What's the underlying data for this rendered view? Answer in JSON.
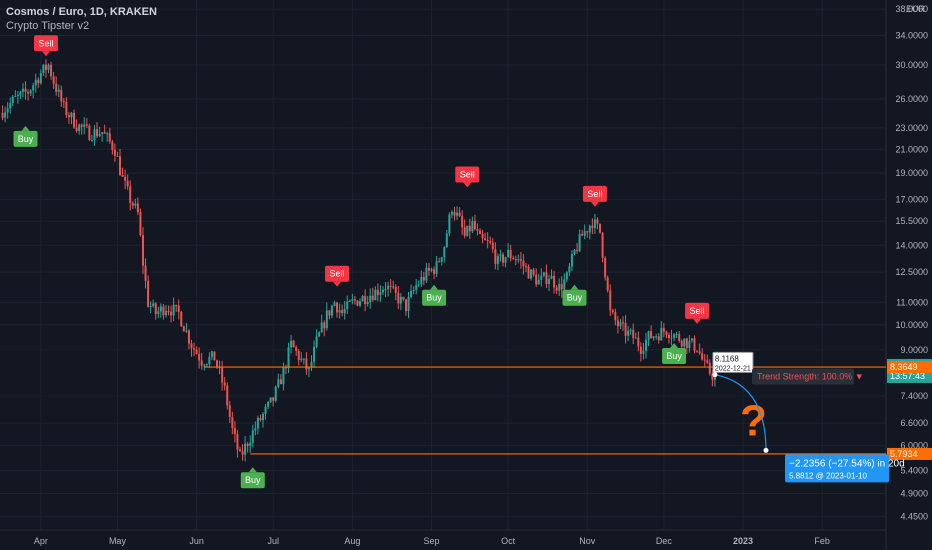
{
  "header": {
    "title": "Cosmos / Euro, 1D, KRAKEN",
    "indicator": "Crypto Tipster v2"
  },
  "colors": {
    "background": "#131722",
    "up": "#26a69a",
    "down": "#ef5350",
    "grid": "#1e2230",
    "axis_text": "#b2b5be",
    "buy": "#4caf50",
    "sell": "#f23645",
    "hline": "#ff6d00",
    "projection": "#2196f3"
  },
  "chart_data": {
    "type": "candlestick",
    "currency_label": "EUR",
    "y_scale": "log",
    "ylim": [
      4.2,
      39.5
    ],
    "x_range": [
      "2022-03-16",
      "2023-02-26"
    ],
    "y_ticks": [
      "38.0000",
      "34.0000",
      "30.0000",
      "26.0000",
      "23.0000",
      "21.0000",
      "19.0000",
      "17.0000",
      "15.5000",
      "14.0000",
      "12.5000",
      "11.0000",
      "10.0000",
      "9.0000",
      "7.4000",
      "6.6000",
      "6.0000",
      "5.4000",
      "4.9000",
      "4.4500"
    ],
    "x_ticks": [
      {
        "label": "Apr",
        "date": "2022-04-01"
      },
      {
        "label": "May",
        "date": "2022-05-01"
      },
      {
        "label": "Jun",
        "date": "2022-06-01"
      },
      {
        "label": "Jul",
        "date": "2022-07-01"
      },
      {
        "label": "Aug",
        "date": "2022-08-01"
      },
      {
        "label": "Sep",
        "date": "2022-09-01"
      },
      {
        "label": "Oct",
        "date": "2022-10-01"
      },
      {
        "label": "Nov",
        "date": "2022-11-01"
      },
      {
        "label": "Dec",
        "date": "2022-12-01"
      },
      {
        "label": "2023",
        "date": "2023-01-01"
      },
      {
        "label": "Feb",
        "date": "2023-02-01"
      }
    ],
    "series": [
      {
        "date": "2022-03-16",
        "close": 24.5
      },
      {
        "date": "2022-03-22",
        "close": 26.0
      },
      {
        "date": "2022-03-27",
        "close": 26.8
      },
      {
        "date": "2022-04-01",
        "close": 29.0
      },
      {
        "date": "2022-04-04",
        "close": 30.0
      },
      {
        "date": "2022-04-06",
        "close": 28.0
      },
      {
        "date": "2022-04-10",
        "close": 25.0
      },
      {
        "date": "2022-04-15",
        "close": 23.3
      },
      {
        "date": "2022-04-20",
        "close": 22.5
      },
      {
        "date": "2022-04-25",
        "close": 22.6
      },
      {
        "date": "2022-04-30",
        "close": 21.0
      },
      {
        "date": "2022-05-03",
        "close": 18.5
      },
      {
        "date": "2022-05-06",
        "close": 17.0
      },
      {
        "date": "2022-05-09",
        "close": 16.0
      },
      {
        "date": "2022-05-11",
        "close": 13.0
      },
      {
        "date": "2022-05-13",
        "close": 11.0
      },
      {
        "date": "2022-05-16",
        "close": 10.5
      },
      {
        "date": "2022-05-20",
        "close": 10.8
      },
      {
        "date": "2022-05-25",
        "close": 10.5
      },
      {
        "date": "2022-05-30",
        "close": 9.2
      },
      {
        "date": "2022-06-03",
        "close": 8.6
      },
      {
        "date": "2022-06-08",
        "close": 8.7
      },
      {
        "date": "2022-06-12",
        "close": 7.6
      },
      {
        "date": "2022-06-15",
        "close": 6.4
      },
      {
        "date": "2022-06-18",
        "close": 5.7
      },
      {
        "date": "2022-06-21",
        "close": 6.1
      },
      {
        "date": "2022-06-25",
        "close": 6.6
      },
      {
        "date": "2022-07-01",
        "close": 7.3
      },
      {
        "date": "2022-07-05",
        "close": 8.2
      },
      {
        "date": "2022-07-08",
        "close": 9.2
      },
      {
        "date": "2022-07-12",
        "close": 8.6
      },
      {
        "date": "2022-07-15",
        "close": 8.2
      },
      {
        "date": "2022-07-18",
        "close": 9.3
      },
      {
        "date": "2022-07-22",
        "close": 10.4
      },
      {
        "date": "2022-07-25",
        "close": 11.0
      },
      {
        "date": "2022-07-28",
        "close": 10.5
      },
      {
        "date": "2022-08-01",
        "close": 11.0
      },
      {
        "date": "2022-08-05",
        "close": 11.2
      },
      {
        "date": "2022-08-10",
        "close": 11.5
      },
      {
        "date": "2022-08-14",
        "close": 11.8
      },
      {
        "date": "2022-08-18",
        "close": 11.3
      },
      {
        "date": "2022-08-22",
        "close": 10.8
      },
      {
        "date": "2022-08-26",
        "close": 11.8
      },
      {
        "date": "2022-08-30",
        "close": 12.4
      },
      {
        "date": "2022-09-03",
        "close": 12.8
      },
      {
        "date": "2022-09-06",
        "close": 14.0
      },
      {
        "date": "2022-09-09",
        "close": 16.5
      },
      {
        "date": "2022-09-12",
        "close": 15.5
      },
      {
        "date": "2022-09-14",
        "close": 14.5
      },
      {
        "date": "2022-09-17",
        "close": 15.3
      },
      {
        "date": "2022-09-20",
        "close": 14.3
      },
      {
        "date": "2022-09-24",
        "close": 14.0
      },
      {
        "date": "2022-09-27",
        "close": 13.0
      },
      {
        "date": "2022-10-01",
        "close": 13.5
      },
      {
        "date": "2022-10-05",
        "close": 13.2
      },
      {
        "date": "2022-10-09",
        "close": 12.5
      },
      {
        "date": "2022-10-13",
        "close": 12.0
      },
      {
        "date": "2022-10-17",
        "close": 12.3
      },
      {
        "date": "2022-10-21",
        "close": 11.7
      },
      {
        "date": "2022-10-24",
        "close": 12.2
      },
      {
        "date": "2022-10-27",
        "close": 13.6
      },
      {
        "date": "2022-10-30",
        "close": 14.6
      },
      {
        "date": "2022-11-03",
        "close": 15.5
      },
      {
        "date": "2022-11-06",
        "close": 14.8
      },
      {
        "date": "2022-11-08",
        "close": 12.5
      },
      {
        "date": "2022-11-10",
        "close": 10.5
      },
      {
        "date": "2022-11-13",
        "close": 10.0
      },
      {
        "date": "2022-11-16",
        "close": 9.7
      },
      {
        "date": "2022-11-19",
        "close": 9.5
      },
      {
        "date": "2022-11-22",
        "close": 9.1
      },
      {
        "date": "2022-11-25",
        "close": 9.5
      },
      {
        "date": "2022-11-28",
        "close": 9.6
      },
      {
        "date": "2022-12-02",
        "close": 9.8
      },
      {
        "date": "2022-12-06",
        "close": 9.5
      },
      {
        "date": "2022-12-10",
        "close": 9.3
      },
      {
        "date": "2022-12-14",
        "close": 9.1
      },
      {
        "date": "2022-12-17",
        "close": 8.4
      },
      {
        "date": "2022-12-20",
        "close": 8.1
      },
      {
        "date": "2022-12-21",
        "close": 8.44
      }
    ],
    "signals": [
      {
        "label": "Buy",
        "date": "2022-03-26",
        "price": 23.3
      },
      {
        "label": "Sell",
        "date": "2022-04-03",
        "price": 31.0
      },
      {
        "label": "Sell",
        "date": "2022-07-26",
        "price": 11.7
      },
      {
        "label": "Buy",
        "date": "2022-09-02",
        "price": 11.9
      },
      {
        "label": "Sell",
        "date": "2022-09-15",
        "price": 17.8
      },
      {
        "label": "Buy",
        "date": "2022-10-27",
        "price": 11.9
      },
      {
        "label": "Sell",
        "date": "2022-11-04",
        "price": 16.4
      },
      {
        "label": "Buy",
        "date": "2022-06-23",
        "price": 5.5
      },
      {
        "label": "Buy",
        "date": "2022-12-05",
        "price": 9.3
      },
      {
        "label": "Sell",
        "date": "2022-12-14",
        "price": 10.0
      }
    ],
    "hlines": [
      {
        "price": 8.3649,
        "start": "2022-06-04"
      },
      {
        "price": 5.7934,
        "start": "2022-06-22"
      }
    ],
    "price_labels": [
      {
        "value": "8.4400",
        "sub": "13:57:43",
        "price": 8.44,
        "color": "#26a69a"
      },
      {
        "value": "8.3649",
        "price": 8.3649,
        "color": "#ff6d00"
      },
      {
        "value": "5.7934",
        "price": 5.7934,
        "color": "#ff6d00"
      }
    ],
    "annotations": {
      "point": {
        "value": "8.1168",
        "date_text": "2022-12-21"
      },
      "trend": "Trend Strength: 100.0% ▼",
      "question": "?",
      "projection": {
        "line1": "−2.2356 (−27.54%) in 20d",
        "line2": "5.8812 @ 2023-01-10",
        "from_date": "2022-12-21",
        "from_price": 8.1,
        "to_date": "2023-01-10",
        "to_price": 5.8812
      }
    }
  }
}
